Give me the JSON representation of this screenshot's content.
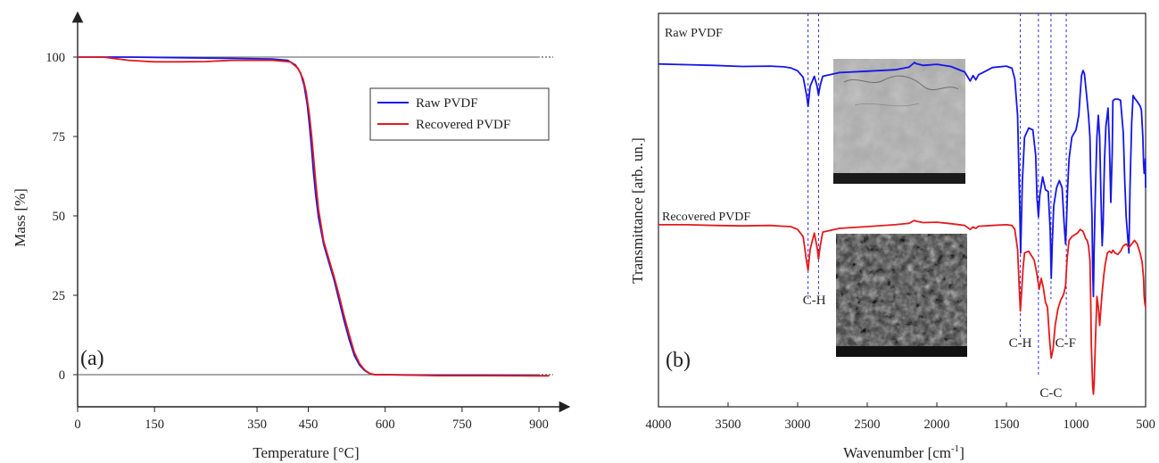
{
  "colors": {
    "raw": "#1515e8",
    "recovered": "#e31a1c",
    "axis": "#222222",
    "ref_line": "#777777"
  },
  "chart_data": [
    {
      "type": "line",
      "panel_label": "(a)",
      "xlabel": "Temperature [°C]",
      "ylabel": "Mass [%]",
      "xlim": [
        0,
        930
      ],
      "ylim": [
        -10,
        115
      ],
      "x_ticks": [
        0,
        150,
        350,
        450,
        600,
        750,
        900
      ],
      "x_tick_labels": [
        "0",
        "150",
        "350",
        "450",
        "600",
        "750",
        "900"
      ],
      "y_ticks": [
        0,
        25,
        50,
        75,
        100
      ],
      "y_tick_labels": [
        "0",
        "25",
        "50",
        "75",
        "100"
      ],
      "reference_lines": [
        0,
        100
      ],
      "legend": {
        "position": "right-middle",
        "entries": [
          "Raw PVDF",
          "Recovered PVDF"
        ]
      },
      "series": [
        {
          "name": "Raw PVDF",
          "color": "#1515e8",
          "x": [
            0,
            50,
            100,
            200,
            300,
            380,
            410,
            425,
            435,
            442,
            448,
            452,
            456,
            460,
            465,
            470,
            480,
            490,
            500,
            510,
            520,
            530,
            540,
            550,
            560,
            570,
            580,
            600,
            700,
            800,
            900,
            920
          ],
          "y": [
            100,
            100,
            100,
            99.8,
            99.6,
            99.4,
            99,
            97.5,
            95,
            91,
            85,
            79,
            72,
            64,
            56,
            49.5,
            41,
            35.5,
            30,
            23.5,
            17,
            11,
            6,
            3,
            1.3,
            0.3,
            0,
            0,
            -0.2,
            -0.2,
            -0.3,
            -0.3
          ]
        },
        {
          "name": "Recovered PVDF",
          "color": "#e31a1c",
          "x": [
            0,
            50,
            100,
            150,
            200,
            250,
            300,
            380,
            415,
            430,
            440,
            446,
            452,
            456,
            460,
            465,
            470,
            480,
            490,
            500,
            510,
            520,
            530,
            540,
            550,
            560,
            570,
            580,
            600,
            700,
            800,
            900,
            920
          ],
          "y": [
            100,
            100,
            99,
            98.5,
            98.5,
            98.6,
            99,
            99,
            98.5,
            96.5,
            93,
            89,
            82,
            76,
            69,
            60,
            52,
            42,
            36.5,
            31,
            25,
            18.5,
            12.5,
            7,
            3.5,
            1.5,
            0.4,
            0,
            0,
            -0.3,
            -0.3,
            -0.4,
            -0.4
          ]
        }
      ]
    },
    {
      "type": "line",
      "panel_label": "(b)",
      "xlabel": "Wavenumber [cm",
      "xlabel_sup": "-1",
      "xlabel_end": "]",
      "ylabel": "Transmittance [arb. un.]",
      "xlim": [
        4000,
        500
      ],
      "x_reversed": true,
      "ylim": [
        0,
        100
      ],
      "x_ticks": [
        4000,
        3500,
        3000,
        2500,
        2000,
        1500,
        1000,
        500
      ],
      "x_tick_labels": [
        "4000",
        "3500",
        "3000",
        "2500",
        "2000",
        "1500",
        "1000",
        "500"
      ],
      "series_labels": [
        "Raw PVDF",
        "Recovered PVDF"
      ],
      "peak_markers": [
        2925,
        2850,
        1400,
        1270,
        1180,
        1070
      ],
      "peak_labels": [
        {
          "text": "C-H",
          "x": 2880
        },
        {
          "text": "C-H",
          "x": 1400
        },
        {
          "text": "C-C",
          "x": 1180
        },
        {
          "text": "C-F",
          "x": 1075
        }
      ],
      "inset_images": [
        "sem-raw-pvdf",
        "sem-recovered-pvdf"
      ],
      "series": [
        {
          "name": "Raw PVDF",
          "color": "#1515e8",
          "x": [
            4000,
            3800,
            3600,
            3400,
            3200,
            3100,
            3050,
            3000,
            2960,
            2935,
            2925,
            2910,
            2880,
            2860,
            2850,
            2840,
            2820,
            2700,
            2500,
            2300,
            2200,
            2160,
            2150,
            2100,
            2000,
            1900,
            1800,
            1760,
            1740,
            1720,
            1700,
            1600,
            1500,
            1460,
            1440,
            1420,
            1405,
            1398,
            1385,
            1370,
            1340,
            1310,
            1290,
            1280,
            1270,
            1260,
            1240,
            1220,
            1200,
            1185,
            1178,
            1170,
            1160,
            1140,
            1120,
            1100,
            1085,
            1075,
            1070,
            1060,
            1050,
            1030,
            1000,
            980,
            970,
            960,
            950,
            940,
            925,
            910,
            900,
            895,
            885,
            880,
            875,
            870,
            860,
            850,
            840,
            830,
            820,
            812,
            805,
            800,
            795,
            785,
            770,
            760,
            750,
            740,
            735,
            720,
            700,
            680,
            660,
            650,
            640,
            620,
            612,
            600,
            590,
            580,
            560,
            540,
            530,
            520,
            515,
            510,
            505,
            502,
            500
          ],
          "y": [
            92.2,
            92,
            91.8,
            91.5,
            91.6,
            91.4,
            91.1,
            90.3,
            88.5,
            83.5,
            80.5,
            86,
            88.8,
            86,
            83.6,
            86,
            88.8,
            89.8,
            90.2,
            90.6,
            91.3,
            92.6,
            92.3,
            91.8,
            92.1,
            91.5,
            90,
            87.5,
            89,
            87.8,
            89.2,
            91.2,
            91.6,
            91,
            88,
            78,
            54,
            40,
            60,
            72,
            74.5,
            74,
            67,
            55,
            50,
            56,
            61,
            57.5,
            57,
            46,
            33,
            43.5,
            53,
            58,
            60,
            58,
            48,
            42.5,
            47,
            58,
            66,
            72,
            74,
            78,
            84,
            89,
            90.4,
            89.5,
            84,
            78,
            72,
            62,
            50,
            35,
            28,
            41,
            58,
            72,
            78,
            72,
            54,
            42,
            48,
            58,
            66,
            75,
            80,
            70,
            54,
            68,
            82,
            82.5,
            82.5,
            82.2,
            73,
            60,
            50,
            40,
            58,
            76,
            83.5,
            82.8,
            81.8,
            80.6,
            79.5,
            72,
            65,
            62,
            64,
            66,
            58
          ]
        },
        {
          "name": "Recovered PVDF",
          "color": "#e31a1c",
          "x": [
            4000,
            3800,
            3600,
            3400,
            3200,
            3100,
            3050,
            3000,
            2960,
            2935,
            2925,
            2910,
            2880,
            2860,
            2850,
            2840,
            2820,
            2700,
            2500,
            2300,
            2200,
            2160,
            2150,
            2100,
            2000,
            1900,
            1800,
            1760,
            1740,
            1720,
            1700,
            1600,
            1500,
            1460,
            1440,
            1420,
            1405,
            1400,
            1390,
            1380,
            1370,
            1340,
            1300,
            1280,
            1265,
            1250,
            1235,
            1220,
            1205,
            1190,
            1178,
            1165,
            1150,
            1130,
            1110,
            1090,
            1075,
            1065,
            1050,
            1030,
            1010,
            990,
            970,
            950,
            940,
            930,
            920,
            910,
            900,
            895,
            890,
            880,
            875,
            870,
            860,
            850,
            840,
            830,
            820,
            810,
            800,
            790,
            775,
            760,
            745,
            735,
            720,
            700,
            680,
            660,
            640,
            620,
            600,
            580,
            560,
            540,
            525,
            515,
            510,
            505,
            500
          ],
          "y": [
            47.8,
            47.8,
            47.6,
            47.5,
            47.6,
            47.4,
            47.3,
            46.5,
            44.5,
            37.5,
            35.2,
            41,
            45.5,
            41.5,
            38.3,
            41.5,
            45.8,
            46.8,
            47.3,
            47.8,
            48.2,
            49,
            48.8,
            48.4,
            48.5,
            48.1,
            47.6,
            46.5,
            47.2,
            46.8,
            47.4,
            47.6,
            47.8,
            47.6,
            46.5,
            41,
            28,
            24,
            30,
            36,
            40,
            40.5,
            38,
            34,
            30,
            33,
            30.5,
            26.5,
            25,
            16,
            11,
            13.5,
            20,
            24.5,
            27,
            28.5,
            31,
            38,
            43.5,
            44.5,
            45,
            45.5,
            46.5,
            46,
            45,
            44,
            43.5,
            42,
            38,
            28,
            14,
            3,
            1,
            4,
            16,
            28,
            25,
            20,
            25.5,
            30,
            34,
            37,
            40,
            40.5,
            40,
            40.8,
            40,
            39.6,
            40.5,
            42,
            42.5,
            41.5,
            42.5,
            43.5,
            42.5,
            40,
            37.5,
            33,
            28,
            26,
            25
          ]
        }
      ]
    }
  ]
}
